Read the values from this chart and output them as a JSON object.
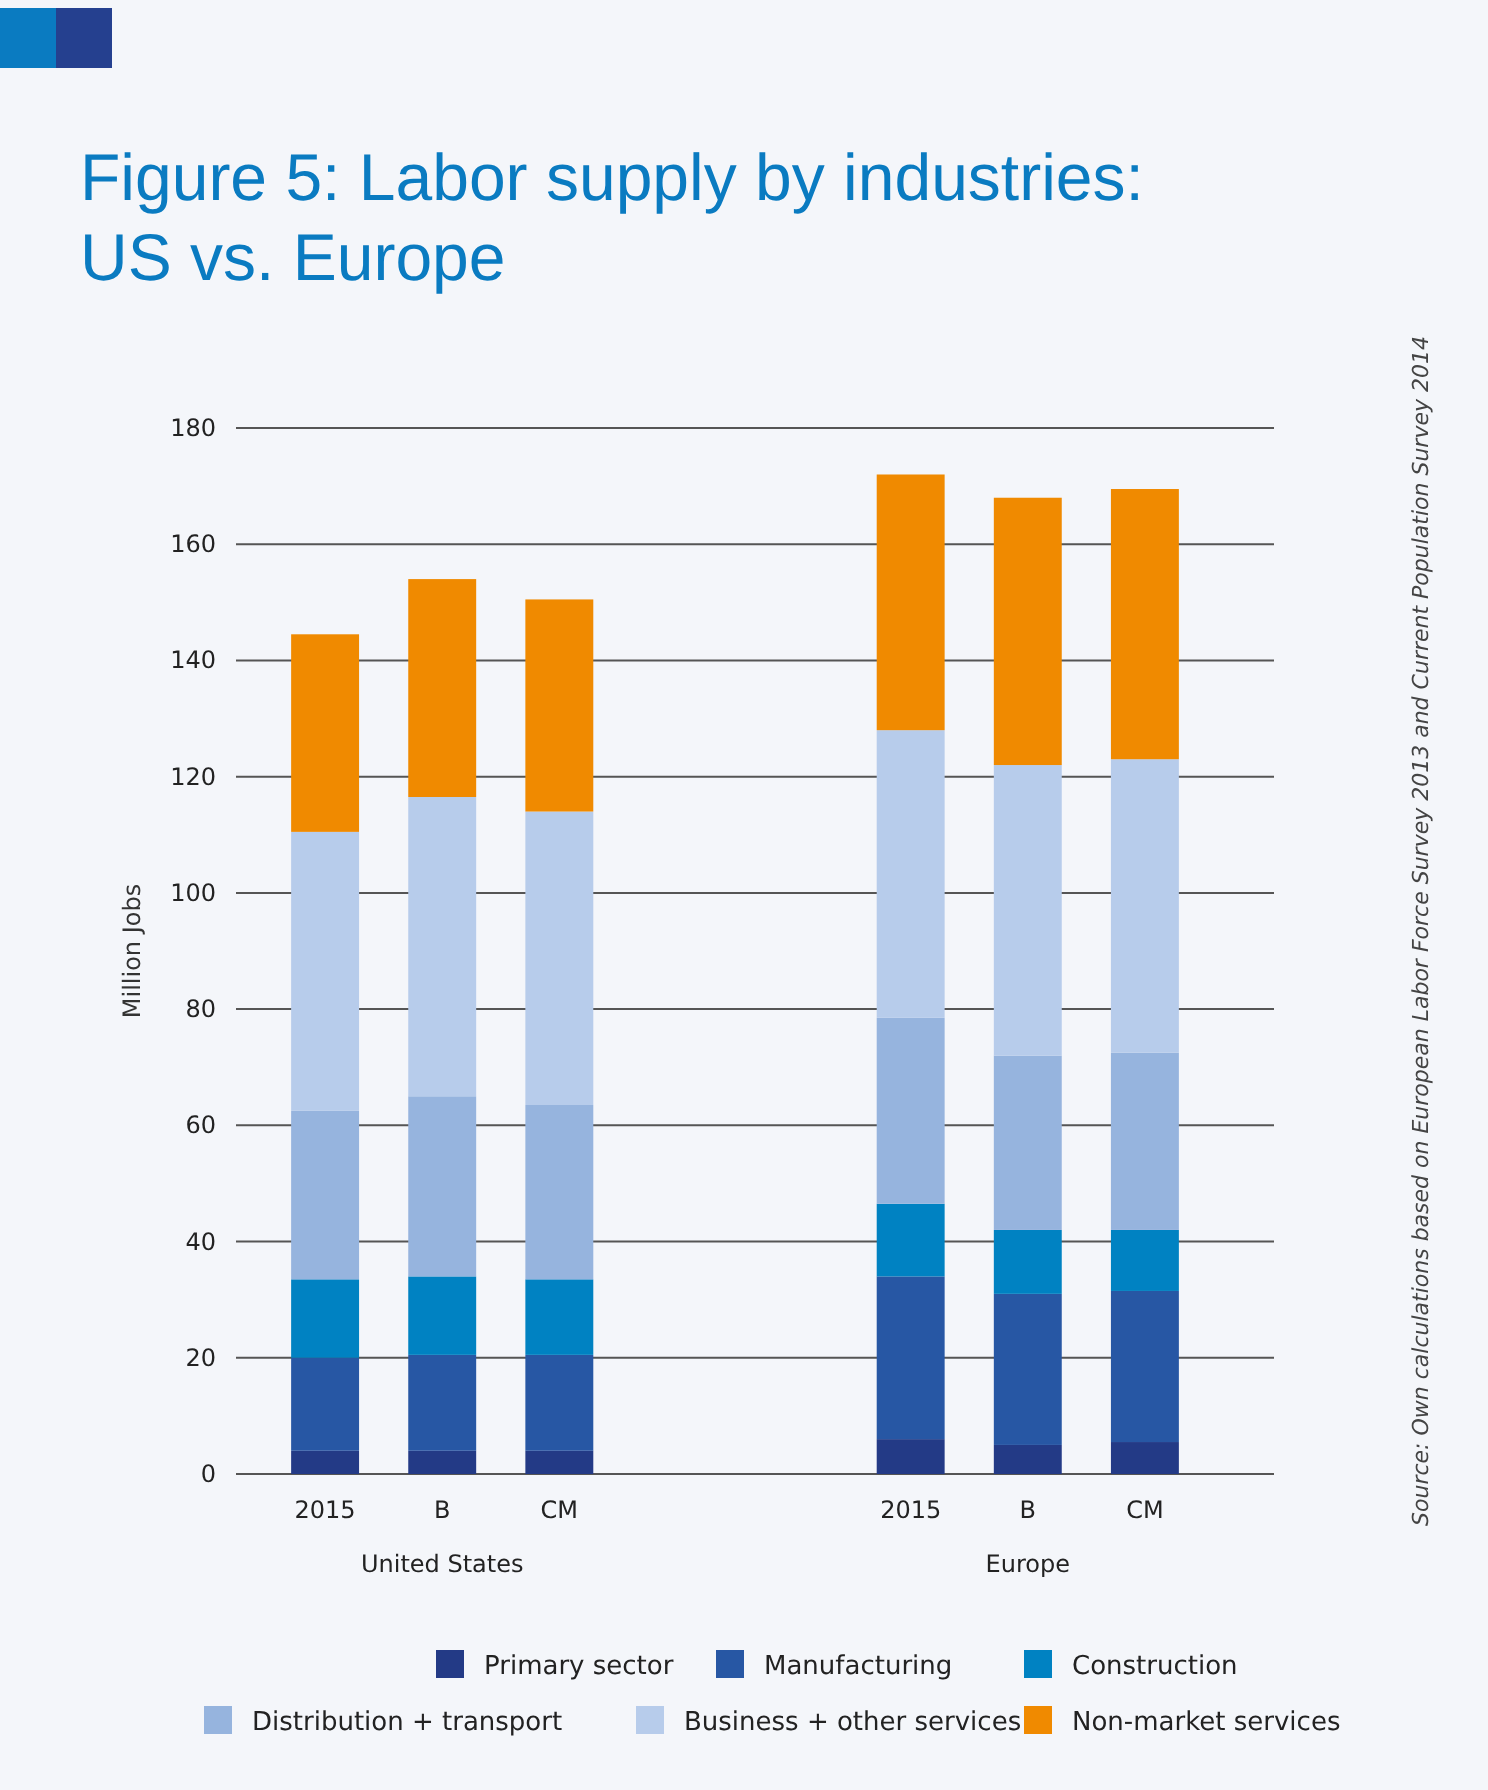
{
  "chart_data": {
    "type": "bar",
    "title": "Figure 5: Labor supply by industries: US vs. Europe",
    "ylabel": "Million Jobs",
    "stacked": true,
    "categories": [
      "2015",
      "B",
      "CM",
      null,
      null,
      "2015",
      "B",
      "CM"
    ],
    "series": [
      {
        "name": "Primary sector",
        "color": "#233a86",
        "values": [
          4,
          4,
          4,
          null,
          null,
          6,
          5,
          5.5
        ]
      },
      {
        "name": "Manufacturing",
        "color": "#2757a4",
        "values": [
          16,
          16.5,
          16.5,
          null,
          null,
          28,
          26,
          26
        ]
      },
      {
        "name": "Construction",
        "color": "#0082c2",
        "values": [
          13.5,
          13.5,
          13,
          null,
          null,
          12.5,
          11,
          10.5
        ]
      },
      {
        "name": "Distribution + transport",
        "color": "#96b4de",
        "values": [
          29,
          31,
          30,
          null,
          null,
          32,
          30,
          30.5
        ]
      },
      {
        "name": "Business + other services",
        "color": "#b7cceb",
        "values": [
          48,
          51.5,
          50.5,
          null,
          null,
          49.5,
          50,
          50.5
        ]
      },
      {
        "name": "Non-market services",
        "color": "#f08a00",
        "values": [
          34,
          37.5,
          36.5,
          null,
          null,
          44,
          46,
          46.5
        ]
      }
    ],
    "ylim": [
      0,
      180
    ],
    "yticks": [
      0,
      20,
      40,
      60,
      80,
      100,
      120,
      140,
      160,
      180
    ],
    "grid": "y",
    "legend": "bottom",
    "annotations": [
      "Source: Own calculations based on European Labor Force Survey 2013 and Current Population Survey 2014",
      "United States",
      "Europe"
    ]
  }
}
